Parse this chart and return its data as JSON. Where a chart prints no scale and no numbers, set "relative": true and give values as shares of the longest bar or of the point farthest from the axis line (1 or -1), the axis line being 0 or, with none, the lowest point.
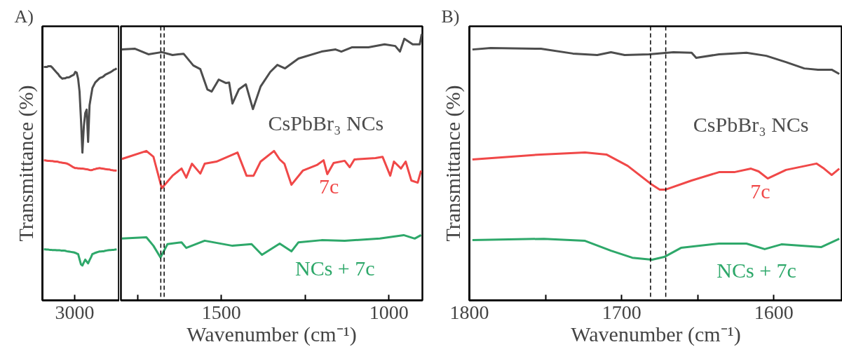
{
  "chart_data": [
    {
      "type": "line",
      "title": "A)",
      "ylabel": "Transmittance (%)",
      "relative": true,
      "annotations": [
        "3000"
      ],
      "categories": [
        null,
        null,
        null,
        null,
        null,
        null,
        null,
        null,
        null,
        null,
        null,
        null,
        null,
        null,
        null,
        null,
        null,
        null,
        null,
        null,
        null,
        null,
        null,
        null,
        null,
        null,
        null,
        null,
        null,
        null,
        null,
        null,
        null,
        null,
        null,
        null,
        null,
        null,
        null,
        null,
        null,
        null,
        null,
        null,
        null,
        null,
        null,
        null,
        null,
        null,
        null,
        null
      ],
      "series": [
        {
          "color": "#4d4d4d",
          "values": [
            0.997,
            0.997,
            0.997,
            1.0,
            1.0,
            1.0,
            0.994,
            0.987,
            0.98,
            0.973,
            0.967,
            0.958,
            0.952,
            0.947,
            0.949,
            0.949,
            0.952,
            0.952,
            0.954,
            0.958,
            0.961,
            0.964,
            0.976,
            0.973,
            0.947,
            0.892,
            0.772,
            0.631,
            0.743,
            0.8,
            0.815,
            0.677,
            0.833,
            0.871,
            0.907,
            0.919,
            0.931,
            0.937,
            0.943,
            0.949,
            0.952,
            0.954,
            0.958,
            0.964,
            0.967,
            0.97,
            0.973,
            0.976,
            0.98,
            0.985,
            0.987,
            0.991
          ]
        },
        {
          "color": "#f04848",
          "values": [
            0.598,
            0.598,
            0.597,
            0.596,
            0.596,
            0.595,
            0.595,
            0.594,
            0.593,
            0.593,
            0.592,
            0.59,
            0.589,
            0.588,
            0.587,
            0.586,
            0.585,
            0.582,
            0.579,
            0.575,
            0.571,
            0.568,
            0.565,
            0.565,
            0.564,
            0.564,
            0.563,
            0.563,
            0.562,
            0.561,
            0.56,
            0.559,
            0.557,
            0.556,
            0.557,
            0.56,
            0.561,
            0.563,
            0.564,
            0.565,
            0.564,
            0.563,
            0.562,
            0.561,
            0.56,
            0.559,
            0.559,
            0.557,
            0.556,
            0.555,
            0.555,
            0.554
          ]
        },
        {
          "color": "#2ea86a",
          "values": [
            0.218,
            0.218,
            0.217,
            0.217,
            0.216,
            0.216,
            0.215,
            0.215,
            0.215,
            0.214,
            0.214,
            0.214,
            0.213,
            0.213,
            0.213,
            0.212,
            0.21,
            0.209,
            0.208,
            0.207,
            0.206,
            0.205,
            0.203,
            0.2,
            0.198,
            0.176,
            0.154,
            0.149,
            0.162,
            0.174,
            0.166,
            0.158,
            0.172,
            0.184,
            0.198,
            0.2,
            0.203,
            0.205,
            0.207,
            0.209,
            0.209,
            0.21,
            0.21,
            0.212,
            0.213,
            0.214,
            0.215,
            0.215,
            0.216,
            0.216,
            0.217,
            0.218
          ]
        }
      ]
    },
    {
      "type": "line",
      "xlabel": "Wavenumber (cm⁻¹)",
      "relative": true,
      "xlim": [
        1800,
        900
      ],
      "xticks": [
        {
          "value": 1750,
          "label": null
        },
        1500,
        {
          "value": 1250,
          "label": null
        },
        1000
      ],
      "ref_lines": [
        {
          "axis": "x",
          "value": 1681,
          "line_style": "dashed",
          "color": "#000000"
        },
        {
          "axis": "x",
          "value": 1671,
          "line_style": "dashed",
          "color": "#000000"
        }
      ],
      "series": [
        {
          "name": "CsPbBr₃ NCs",
          "color": "#4d4d4d",
          "x": [
            1797,
            1759,
            1718,
            1678,
            1646,
            1613,
            1584,
            1563,
            1542,
            1529,
            1508,
            1487,
            1477,
            1467,
            1448,
            1427,
            1406,
            1383,
            1354,
            1333,
            1310,
            1270,
            1201,
            1159,
            1142,
            1111,
            1061,
            1013,
            981,
            967,
            954,
            929,
            908,
            902
          ],
          "values": [
            0.942,
            0.945,
            0.924,
            0.932,
            0.921,
            0.926,
            0.882,
            0.868,
            0.792,
            0.784,
            0.829,
            0.816,
            0.818,
            0.739,
            0.792,
            0.811,
            0.718,
            0.803,
            0.858,
            0.884,
            0.871,
            0.908,
            0.934,
            0.942,
            0.934,
            0.95,
            0.95,
            0.961,
            0.955,
            0.934,
            0.982,
            0.961,
            0.961,
            1.0
          ]
        },
        {
          "name": "7c",
          "color": "#f04848",
          "x": [
            1797,
            1724,
            1703,
            1678,
            1646,
            1619,
            1605,
            1588,
            1563,
            1550,
            1515,
            1452,
            1425,
            1404,
            1383,
            1343,
            1326,
            1312,
            1291,
            1257,
            1215,
            1195,
            1184,
            1165,
            1132,
            1117,
            1103,
            1040,
            1019,
            996,
            985,
            964,
            950,
            933,
            914,
            904
          ],
          "values": [
            0.531,
            0.561,
            0.539,
            0.421,
            0.468,
            0.495,
            0.461,
            0.513,
            0.476,
            0.513,
            0.521,
            0.555,
            0.468,
            0.468,
            0.521,
            0.561,
            0.529,
            0.513,
            0.434,
            0.487,
            0.508,
            0.526,
            0.474,
            0.516,
            0.524,
            0.5,
            0.529,
            0.534,
            0.539,
            0.468,
            0.521,
            0.495,
            0.521,
            0.45,
            0.442,
            0.487
          ]
        },
        {
          "name": "NCs + 7c",
          "color": "#2ea86a",
          "x": [
            1797,
            1724,
            1703,
            1682,
            1661,
            1619,
            1605,
            1550,
            1467,
            1410,
            1379,
            1326,
            1291,
            1270,
            1201,
            1132,
            1027,
            956,
            923,
            904
          ],
          "values": [
            0.232,
            0.237,
            0.205,
            0.161,
            0.211,
            0.218,
            0.197,
            0.224,
            0.205,
            0.211,
            0.171,
            0.213,
            0.184,
            0.218,
            0.226,
            0.224,
            0.232,
            0.245,
            0.232,
            0.245
          ]
        }
      ]
    },
    {
      "type": "line",
      "title": "B)",
      "ylabel": "Transmittance (%)",
      "xlabel": "Wavenumber (cm⁻¹)",
      "relative": true,
      "xlim": [
        1800,
        1555
      ],
      "xticks": [
        1800,
        {
          "value": 1750,
          "label": null
        },
        1700,
        {
          "value": 1650,
          "label": null
        },
        1600
      ],
      "ref_lines": [
        {
          "axis": "x",
          "value": 1681,
          "line_style": "dashed",
          "color": "#000000"
        },
        {
          "axis": "x",
          "value": 1671,
          "line_style": "dashed",
          "color": "#000000"
        }
      ],
      "series": [
        {
          "name": "CsPbBr₃ NCs",
          "color": "#4d4d4d",
          "x": [
            1798,
            1786,
            1753,
            1732,
            1716,
            1707,
            1698,
            1682,
            1666,
            1654,
            1651,
            1636,
            1618,
            1605,
            1592,
            1580,
            1571,
            1562,
            1557
          ],
          "values": [
            0.994,
            1.0,
            0.997,
            0.978,
            0.972,
            0.983,
            0.972,
            0.975,
            0.983,
            0.981,
            0.961,
            0.975,
            0.981,
            0.969,
            0.944,
            0.919,
            0.914,
            0.914,
            0.897
          ]
        },
        {
          "name": "7c",
          "color": "#f04848",
          "x": [
            1798,
            1753,
            1724,
            1710,
            1696,
            1680,
            1675,
            1671,
            1654,
            1636,
            1626,
            1615,
            1610,
            1604,
            1592,
            1572,
            1567,
            1562,
            1557
          ],
          "values": [
            0.558,
            0.578,
            0.586,
            0.578,
            0.533,
            0.458,
            0.439,
            0.439,
            0.475,
            0.508,
            0.508,
            0.522,
            0.511,
            0.483,
            0.517,
            0.542,
            0.522,
            0.497,
            0.522
          ]
        },
        {
          "name": "NCs + 7c",
          "color": "#2ea86a",
          "x": [
            1798,
            1751,
            1724,
            1707,
            1693,
            1680,
            1672,
            1661,
            1636,
            1618,
            1606,
            1595,
            1569,
            1557
          ],
          "values": [
            0.239,
            0.244,
            0.236,
            0.197,
            0.169,
            0.161,
            0.172,
            0.208,
            0.225,
            0.225,
            0.203,
            0.222,
            0.211,
            0.244
          ]
        }
      ]
    }
  ]
}
